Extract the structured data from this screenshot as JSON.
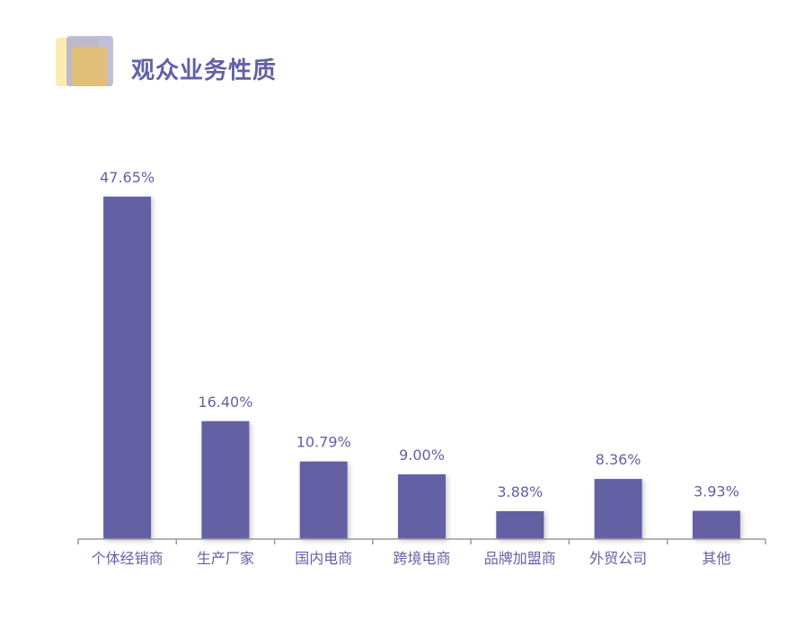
{
  "header": {
    "title": "观众业务性质",
    "icon": "stacked-squares-icon"
  },
  "colors": {
    "bar": "#6461a4",
    "text": "#6361a5",
    "axis": "#999999"
  },
  "chart_data": {
    "type": "bar",
    "title": "观众业务性质",
    "categories": [
      "个体经销商",
      "生产厂家",
      "国内电商",
      "跨境电商",
      "品牌加盟商",
      "外贸公司",
      "其他"
    ],
    "values": [
      47.65,
      16.4,
      10.79,
      9.0,
      3.88,
      8.36,
      3.93
    ],
    "value_labels": [
      "47.65%",
      "16.40%",
      "10.79%",
      "9.00%",
      "3.88%",
      "8.36%",
      "3.93%"
    ],
    "unit": "%",
    "xlabel": "",
    "ylabel": "",
    "ylim": [
      0,
      50
    ],
    "grid": false,
    "legend": "none"
  }
}
